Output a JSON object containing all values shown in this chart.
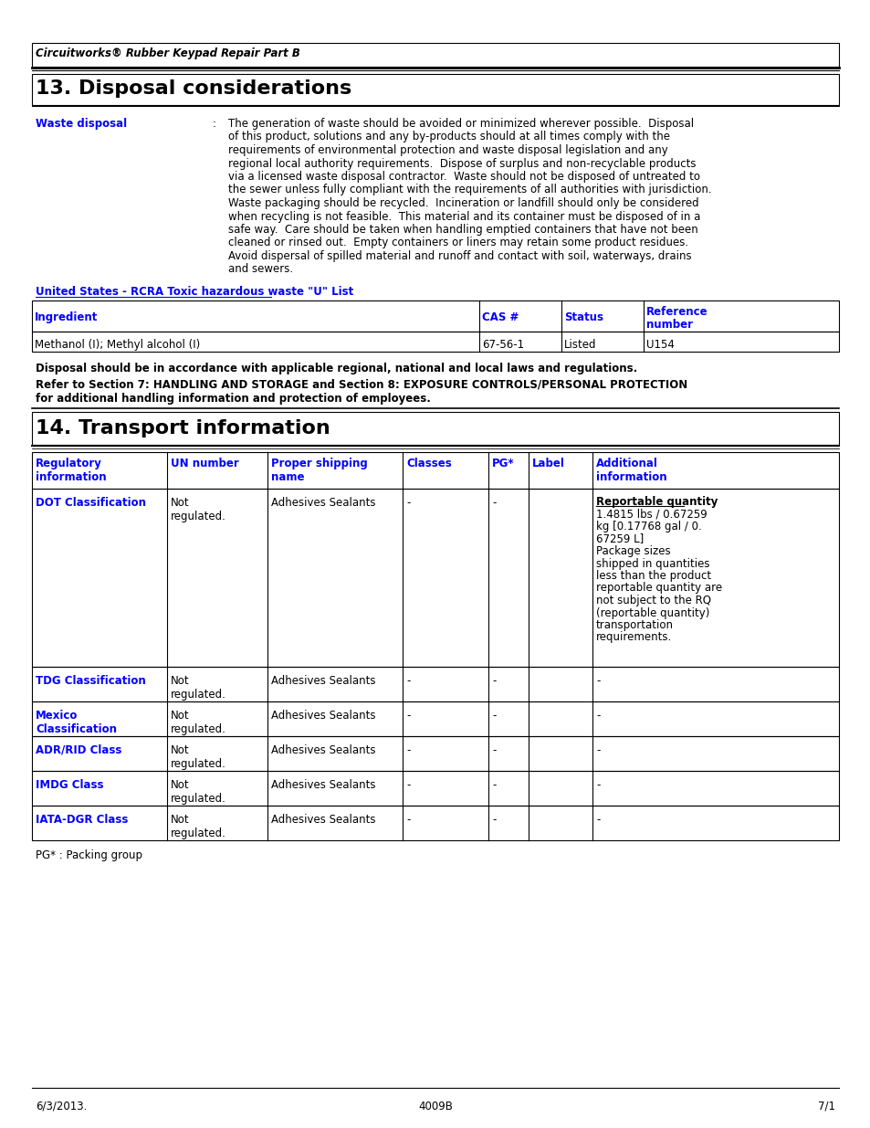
{
  "header_text": "Circuitworks® Rubber Keypad Repair Part B",
  "section13_title": "13. Disposal considerations",
  "waste_disposal_label": "Waste disposal",
  "waste_disposal_text": "The generation of waste should be avoided or minimized wherever possible.  Disposal\nof this product, solutions and any by-products should at all times comply with the\nrequirements of environmental protection and waste disposal legislation and any\nregional local authority requirements.  Dispose of surplus and non-recyclable products\nvia a licensed waste disposal contractor.  Waste should not be disposed of untreated to\nthe sewer unless fully compliant with the requirements of all authorities with jurisdiction.\nWaste packaging should be recycled.  Incineration or landfill should only be considered\nwhen recycling is not feasible.  This material and its container must be disposed of in a\nsafe way.  Care should be taken when handling emptied containers that have not been\ncleaned or rinsed out.  Empty containers or liners may retain some product residues.\nAvoid dispersal of spilled material and runoff and contact with soil, waterways, drains\nand sewers.",
  "rcra_link": "United States - RCRA Toxic hazardous waste \"U\" List",
  "table1_headers": [
    "Ingredient",
    "CAS #",
    "Status",
    "Reference\nnumber"
  ],
  "table1_row": [
    "Methanol (I); Methyl alcohol (I)",
    "67-56-1",
    "Listed",
    "U154"
  ],
  "disposal_note1": "Disposal should be in accordance with applicable regional, national and local laws and regulations.",
  "disposal_note2_line1": "Refer to Section 7: HANDLING AND STORAGE and Section 8: EXPOSURE CONTROLS/PERSONAL PROTECTION",
  "disposal_note2_line2": "for additional handling information and protection of employees.",
  "section14_title": "14. Transport information",
  "table2_headers": [
    "Regulatory\ninformation",
    "UN number",
    "Proper shipping\nname",
    "Classes",
    "PG*",
    "Label",
    "Additional\ninformation"
  ],
  "table2_rows": [
    [
      "DOT Classification",
      "Not\nregulated.",
      "Adhesives Sealants",
      "-",
      "-",
      "",
      "Reportable quantity\n1.4815 lbs / 0.67259\nkg [0.17768 gal / 0.\n67259 L]\nPackage sizes\nshipped in quantities\nless than the product\nreportable quantity are\nnot subject to the RQ\n(reportable quantity)\ntransportation\nrequirements."
    ],
    [
      "TDG Classification",
      "Not\nregulated.",
      "Adhesives Sealants",
      "-",
      "-",
      "",
      "-"
    ],
    [
      "Mexico\nClassification",
      "Not\nregulated.",
      "Adhesives Sealants",
      "-",
      "-",
      "",
      "-"
    ],
    [
      "ADR/RID Class",
      "Not\nregulated.",
      "Adhesives Sealants",
      "-",
      "-",
      "",
      "-"
    ],
    [
      "IMDG Class",
      "Not\nregulated.",
      "Adhesives Sealants",
      "-",
      "-",
      "",
      "-"
    ],
    [
      "IATA-DGR Class",
      "Not\nregulated.",
      "Adhesives Sealants",
      "-",
      "-",
      "",
      "-"
    ]
  ],
  "pg_note": "PG* : Packing group",
  "footer_left": "6/3/2013.",
  "footer_center": "4009B",
  "footer_right": "7/1",
  "blue_color": "#0000FF",
  "black_color": "#000000",
  "bg_color": "#FFFFFF"
}
